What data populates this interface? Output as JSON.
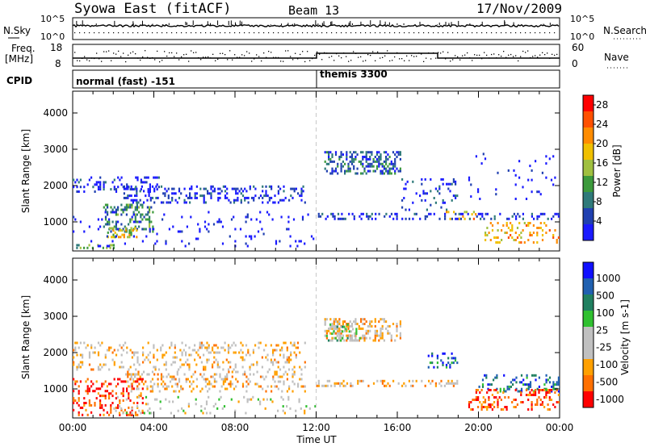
{
  "header": {
    "station": "Syowa East (fitACF)",
    "beam": "Beam 13",
    "date": "17/Nov/2009"
  },
  "nsky_panel": {
    "left_label": "N.Sky",
    "right_label": "N.Search",
    "left_ticks": [
      "10^5",
      "10^0"
    ],
    "right_ticks": [
      "10^5",
      "10^0"
    ]
  },
  "freq_panel": {
    "left_label_1": "Freq.",
    "left_label_2": "[MHz]",
    "right_label": "Nave",
    "left_ticks": [
      "18",
      "8"
    ],
    "right_ticks": [
      "60",
      "0"
    ]
  },
  "cpid_panel": {
    "label": "CPID",
    "segments": [
      {
        "name": "normal (fast) -151",
        "start": "00:00"
      },
      {
        "name": "themis 3300",
        "start": "12:00"
      }
    ]
  },
  "colors": {
    "power": [
      "#1a1aff",
      "#2040b0",
      "#2f7a7a",
      "#3c9a3c",
      "#a0c040",
      "#f0c000",
      "#ff8c00",
      "#ff5000",
      "#ff0000"
    ],
    "velocity": [
      "#ff0000",
      "#ff7000",
      "#ffa000",
      "#c0c0c0",
      "#c0c0c0",
      "#30c030",
      "#208060",
      "#2060b0",
      "#1010ff"
    ],
    "dash_line": "#c8c8c8"
  },
  "chart_data": [
    {
      "type": "heatmap",
      "name": "power",
      "xlabel": "",
      "ylabel": "Slant Range [km]",
      "x_ticks": [
        "00:00",
        "04:00",
        "08:00",
        "12:00",
        "16:00",
        "20:00",
        "00:00"
      ],
      "y_ticks": [
        1000,
        2000,
        3000,
        4000
      ],
      "ylim": [
        200,
        4600
      ],
      "xlim_hours": [
        0,
        24
      ],
      "colorbar": {
        "label": "Power [dB]",
        "ticks": [
          4,
          8,
          12,
          16,
          20,
          24,
          28
        ],
        "range": [
          0,
          30
        ]
      },
      "regions": [
        {
          "t0": 0.0,
          "t1": 4.3,
          "r0": 1800,
          "r1": 2250,
          "level": 1,
          "density": 0.2
        },
        {
          "t0": 1.5,
          "t1": 4.0,
          "r0": 700,
          "r1": 1500,
          "level": 3,
          "density": 0.3
        },
        {
          "t0": 1.7,
          "t1": 3.2,
          "r0": 550,
          "r1": 850,
          "level": 5,
          "density": 0.35
        },
        {
          "t0": 0.0,
          "t1": 2.5,
          "r0": 250,
          "r1": 400,
          "level": 4,
          "density": 0.3
        },
        {
          "t0": 2.5,
          "t1": 11.5,
          "r0": 1500,
          "r1": 2000,
          "level": 1,
          "density": 0.25
        },
        {
          "t0": 0.0,
          "t1": 12.0,
          "r0": 300,
          "r1": 1300,
          "level": 0,
          "density": 0.06
        },
        {
          "t0": 12.4,
          "t1": 16.2,
          "r0": 2300,
          "r1": 2950,
          "level": 2,
          "density": 0.4
        },
        {
          "t0": 12.0,
          "t1": 24.0,
          "r0": 1050,
          "r1": 1250,
          "level": 1,
          "density": 0.25
        },
        {
          "t0": 16.2,
          "t1": 19.0,
          "r0": 1300,
          "r1": 2200,
          "level": 1,
          "density": 0.12
        },
        {
          "t0": 18.3,
          "t1": 20.0,
          "r0": 1050,
          "r1": 1300,
          "level": 6,
          "density": 0.2
        },
        {
          "t0": 20.3,
          "t1": 24.0,
          "r0": 400,
          "r1": 1000,
          "level": 6,
          "density": 0.22
        },
        {
          "t0": 19.5,
          "t1": 24.0,
          "r0": 1600,
          "r1": 2900,
          "level": 0,
          "density": 0.04
        }
      ]
    },
    {
      "type": "heatmap",
      "name": "velocity",
      "xlabel": "Time UT",
      "ylabel": "Slant Range [km]",
      "x_ticks": [
        "00:00",
        "04:00",
        "08:00",
        "12:00",
        "16:00",
        "20:00",
        "00:00"
      ],
      "y_ticks": [
        1000,
        2000,
        3000,
        4000
      ],
      "ylim": [
        200,
        4600
      ],
      "xlim_hours": [
        0,
        24
      ],
      "colorbar": {
        "label": "Velocity [m s-1]",
        "ticks": [
          1000,
          500,
          100,
          25,
          -25,
          -100,
          -500,
          -1000
        ]
      },
      "regions": [
        {
          "t0": 0.0,
          "t1": 11.5,
          "r0": 1500,
          "r1": 2300,
          "level": 3,
          "density": 0.2
        },
        {
          "t0": 2.5,
          "t1": 11.5,
          "r0": 900,
          "r1": 1500,
          "level": 3,
          "density": 0.25
        },
        {
          "t0": 0.0,
          "t1": 3.5,
          "r0": 250,
          "r1": 1300,
          "level": 1,
          "density": 0.25
        },
        {
          "t0": 2.0,
          "t1": 12.0,
          "r0": 300,
          "r1": 800,
          "level": 4,
          "density": 0.1
        },
        {
          "t0": 12.4,
          "t1": 16.2,
          "r0": 2300,
          "r1": 2950,
          "level": 3,
          "density": 0.4
        },
        {
          "t0": 12.4,
          "t1": 14.2,
          "r0": 2300,
          "r1": 2800,
          "level": 5,
          "density": 0.25
        },
        {
          "t0": 12.0,
          "t1": 19.0,
          "r0": 1050,
          "r1": 1250,
          "level": 3,
          "density": 0.3
        },
        {
          "t0": 17.5,
          "t1": 19.0,
          "r0": 1500,
          "r1": 2000,
          "level": 7,
          "density": 0.25
        },
        {
          "t0": 20.0,
          "t1": 24.0,
          "r0": 900,
          "r1": 1400,
          "level": 7,
          "density": 0.25
        },
        {
          "t0": 19.5,
          "t1": 24.0,
          "r0": 400,
          "r1": 1000,
          "level": 1,
          "density": 0.25
        }
      ]
    }
  ]
}
